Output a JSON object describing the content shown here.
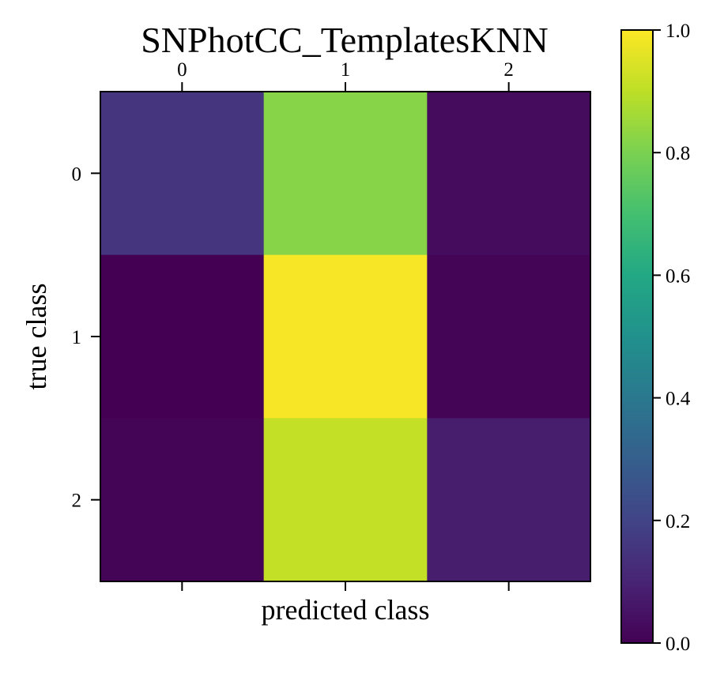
{
  "chart_data": {
    "type": "heatmap",
    "title": "SNPhotCC_TemplatesKNN",
    "xlabel": "predicted class",
    "ylabel": "true class",
    "x_categories": [
      "0",
      "1",
      "2"
    ],
    "y_categories": [
      "0",
      "1",
      "2"
    ],
    "values": [
      [
        0.15,
        0.82,
        0.03
      ],
      [
        0.0,
        0.99,
        0.01
      ],
      [
        0.01,
        0.91,
        0.08
      ]
    ],
    "colormap": "viridis",
    "colorbar": {
      "range": [
        0.0,
        1.0
      ],
      "ticks": [
        "0.0",
        "0.2",
        "0.4",
        "0.6",
        "0.8",
        "1.0"
      ]
    },
    "x_ticks_position": "top"
  }
}
